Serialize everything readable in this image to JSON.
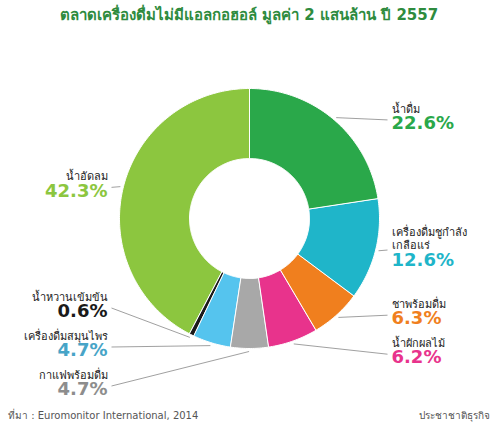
{
  "chart_data": {
    "type": "donut",
    "title": "ตลาดเครื่องดื่มไม่มีแอลกอฮอล์ มูลค่า 2 แสนล้าน ปี 2557",
    "categories": [
      "น้ำดื่ม",
      "เครื่องดื่มชูกำลัง เกลือแร่",
      "ชาพร้อมดื่ม",
      "น้ำผักผลไม้",
      "กาแฟพร้อมดื่ม",
      "เครื่องดื่มสมุนไพร",
      "น้ำหวานเข้มข้น",
      "น้ำอัดลม"
    ],
    "values": [
      22.6,
      12.6,
      6.3,
      6.2,
      4.7,
      4.7,
      0.6,
      42.3
    ],
    "value_labels": [
      "22.6%",
      "12.6%",
      "6.3%",
      "6.2%",
      "4.7%",
      "4.7%",
      "0.6%",
      "42.3%"
    ],
    "colors": [
      "#2aa84a",
      "#1fb5c9",
      "#f07f1e",
      "#e8338c",
      "#a8a8a8",
      "#55c4ee",
      "#1a1a1a",
      "#8cc63f"
    ],
    "data_labels": true,
    "source": "ที่มา : Euromonitor International, 2014",
    "credit": "ประชาชาติธุรกิจ"
  }
}
